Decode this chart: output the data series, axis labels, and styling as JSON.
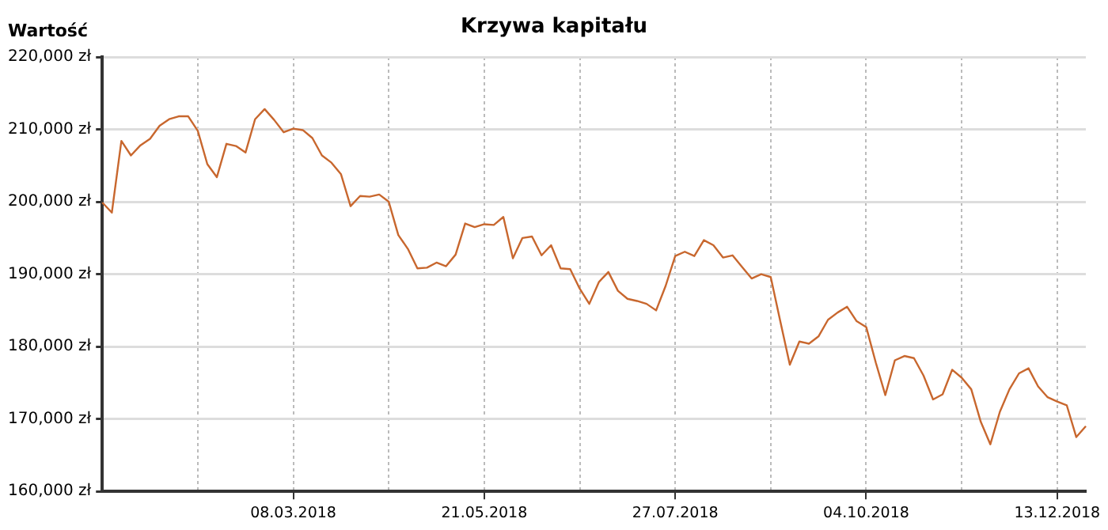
{
  "chart_data": {
    "type": "line",
    "title": "Krzywa kapitału",
    "ylabel": "Wartość",
    "categories": [
      null,
      null,
      null,
      null,
      null,
      null,
      null,
      null,
      null,
      null,
      null,
      null,
      null,
      null,
      null,
      null,
      null,
      null,
      null,
      null,
      "08.03.2018",
      null,
      null,
      null,
      null,
      null,
      null,
      null,
      null,
      null,
      null,
      null,
      null,
      null,
      null,
      null,
      null,
      null,
      null,
      null,
      "21.05.2018",
      null,
      null,
      null,
      null,
      null,
      null,
      null,
      null,
      null,
      null,
      null,
      null,
      null,
      null,
      null,
      null,
      null,
      null,
      null,
      "27.07.2018",
      null,
      null,
      null,
      null,
      null,
      null,
      null,
      null,
      null,
      null,
      null,
      null,
      null,
      null,
      null,
      null,
      null,
      null,
      null,
      "04.10.2018",
      null,
      null,
      null,
      null,
      null,
      null,
      null,
      null,
      null,
      null,
      null,
      null,
      null,
      null,
      null,
      null,
      null,
      null,
      null,
      "13.12.2018",
      null,
      null,
      null
    ],
    "series": [
      {
        "color": "#c8672e",
        "values": [
          199900,
          198500,
          208400,
          206400,
          207800,
          208700,
          210500,
          211400,
          211800,
          211800,
          209800,
          205200,
          203400,
          208000,
          207700,
          206800,
          211400,
          212800,
          211300,
          209600,
          210100,
          209900,
          208800,
          206400,
          205400,
          203800,
          199400,
          200800,
          200700,
          201000,
          200000,
          195400,
          193500,
          190800,
          190900,
          191600,
          191100,
          192700,
          197000,
          196500,
          196900,
          196800,
          197900,
          192200,
          195000,
          195200,
          192600,
          194000,
          190800,
          190700,
          188000,
          185900,
          188900,
          190300,
          187700,
          186600,
          186300,
          185900,
          185000,
          188400,
          192500,
          193100,
          192500,
          194700,
          194000,
          192300,
          192600,
          191000,
          189400,
          190000,
          189600,
          183500,
          177500,
          180700,
          180400,
          181400,
          183700,
          184700,
          185500,
          183500,
          182700,
          177800,
          173300,
          178100,
          178700,
          178400,
          176000,
          172700,
          173400,
          176800,
          175700,
          174100,
          169600,
          166500,
          171000,
          174100,
          176300,
          177000,
          174500,
          173000,
          172400,
          171900,
          167500,
          169000
        ]
      }
    ],
    "ylim": [
      160000,
      220000
    ],
    "yticks": [
      {
        "value": 160000,
        "label": "160,000 zł"
      },
      {
        "value": 170000,
        "label": "170,000 zł"
      },
      {
        "value": 180000,
        "label": "180,000 zł"
      },
      {
        "value": 190000,
        "label": "190,000 zł"
      },
      {
        "value": 200000,
        "label": "200,000 zł"
      },
      {
        "value": 210000,
        "label": "210,000 zł"
      },
      {
        "value": 220000,
        "label": "220,000 zł"
      }
    ],
    "grid": true,
    "legend": false,
    "marker": "none",
    "line_style": "solid"
  }
}
